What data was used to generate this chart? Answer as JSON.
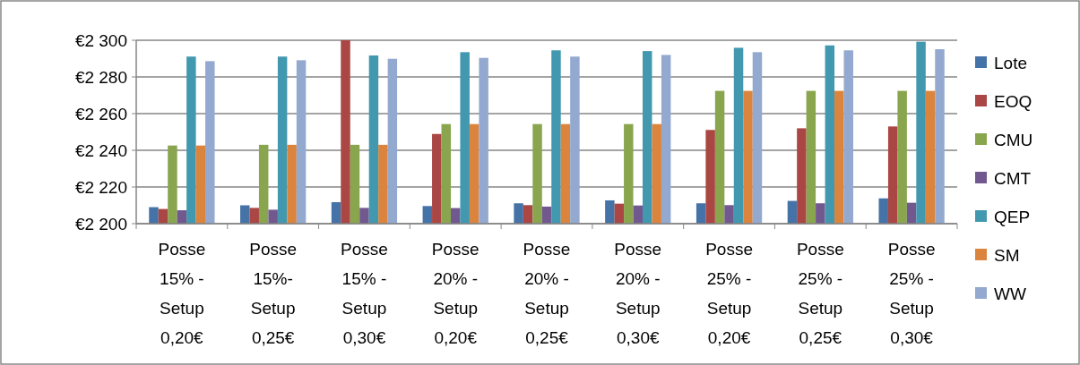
{
  "chart_data": {
    "type": "bar",
    "categories": [
      "Posse 15% - Setup 0,20€",
      "Posse 15%- Setup 0,25€",
      "Posse 15% - Setup 0,30€",
      "Posse 20% - Setup 0,20€",
      "Posse 20% - Setup 0,25€",
      "Posse 20% - Setup 0,30€",
      "Posse 25% - Setup 0,20€",
      "Posse 25% - Setup 0,25€",
      "Posse 25% - Setup 0,30€"
    ],
    "series": [
      {
        "name": "Lote",
        "color": "#4572a7",
        "values": [
          2209,
          2210,
          2211.7,
          2209.6,
          2211.1,
          2212.7,
          2211.1,
          2212.4,
          2213.8
        ]
      },
      {
        "name": "EOQ",
        "color": "#aa4643",
        "values": [
          2208,
          2208.6,
          2300,
          2248.9,
          2210.1,
          2210.9,
          2251.1,
          2252,
          2253
        ]
      },
      {
        "name": "CMU",
        "color": "#89a54e",
        "values": [
          2242.6,
          2243,
          2243,
          2254.3,
          2254.3,
          2254.3,
          2272.4,
          2272.4,
          2272.4
        ]
      },
      {
        "name": "CMT",
        "color": "#71588f",
        "values": [
          2207.3,
          2207.6,
          2208.6,
          2208.5,
          2209.3,
          2209.9,
          2210.1,
          2211.1,
          2211.4
        ]
      },
      {
        "name": "QEP",
        "color": "#4198af",
        "values": [
          2291.1,
          2291.1,
          2291.7,
          2293.5,
          2294.5,
          2294.1,
          2295.9,
          2297.2,
          2299.2
        ]
      },
      {
        "name": "SM",
        "color": "#db843d",
        "values": [
          2242.6,
          2243,
          2243,
          2254.3,
          2254.3,
          2254.3,
          2272.4,
          2272.4,
          2272.4
        ]
      },
      {
        "name": "WW",
        "color": "#93a9cf",
        "values": [
          2288.6,
          2289.1,
          2289.9,
          2290.4,
          2291.1,
          2292,
          2293.5,
          2294.5,
          2295.1
        ]
      }
    ],
    "ylim": [
      2200,
      2300
    ],
    "yticks": [
      {
        "value": 2200,
        "label": "€2 200"
      },
      {
        "value": 2220,
        "label": "€2 220"
      },
      {
        "value": 2240,
        "label": "€2 240"
      },
      {
        "value": 2260,
        "label": "€2 260"
      },
      {
        "value": 2280,
        "label": "€2 280"
      },
      {
        "value": 2300,
        "label": "€2 300"
      }
    ],
    "grid": "y",
    "legend": "right"
  }
}
